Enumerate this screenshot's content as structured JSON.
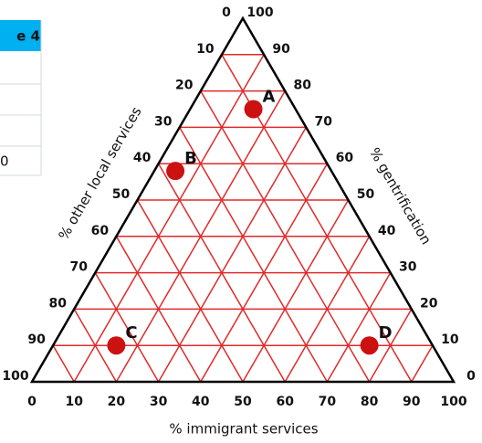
{
  "table": {
    "header": "e 4",
    "rows": [
      null,
      null,
      null,
      "0"
    ]
  },
  "chart_data": {
    "type": "ternary",
    "axes": {
      "bottom": {
        "label": "% immigrant services",
        "ticks": [
          0,
          10,
          20,
          30,
          40,
          50,
          60,
          70,
          80,
          90,
          100
        ]
      },
      "left": {
        "label": "% other local services",
        "ticks": [
          0,
          10,
          20,
          30,
          40,
          50,
          60,
          70,
          80,
          90,
          100
        ]
      },
      "right": {
        "label": "% gentrification",
        "ticks": [
          0,
          10,
          20,
          30,
          40,
          50,
          60,
          70,
          80,
          90,
          100
        ]
      }
    },
    "grid": true,
    "grid_color": "#e02a2a",
    "color": "#cc1111",
    "points": [
      {
        "label": "A",
        "immigrant": 15,
        "other": 10,
        "gentrification": 75
      },
      {
        "label": "B",
        "immigrant": 5,
        "other": 37,
        "gentrification": 58
      },
      {
        "label": "C",
        "immigrant": 15,
        "other": 75,
        "gentrification": 10
      },
      {
        "label": "D",
        "immigrant": 75,
        "other": 15,
        "gentrification": 10
      }
    ]
  }
}
